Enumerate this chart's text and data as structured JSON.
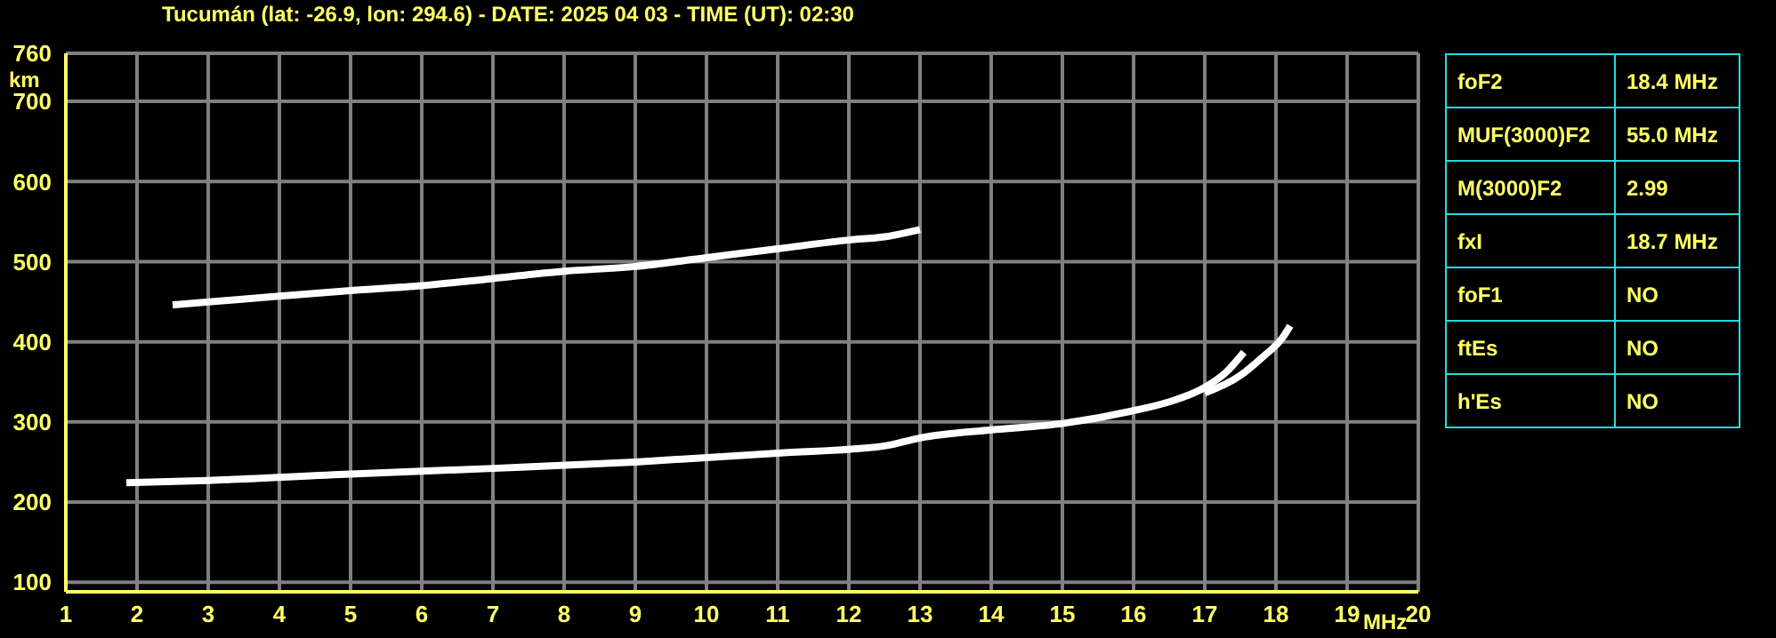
{
  "chart_data": [
    {
      "type": "line",
      "title": "Tucumán (lat: -26.9, lon: 294.6) - DATE: 2025 04 03 - TIME (UT): 02:30",
      "xlabel": "MHz",
      "ylabel": "km",
      "xlim": [
        1,
        20
      ],
      "xticks": [
        1,
        2,
        3,
        4,
        5,
        6,
        7,
        8,
        9,
        10,
        11,
        12,
        13,
        14,
        15,
        16,
        17,
        18,
        19,
        20
      ],
      "ylim": [
        88,
        760
      ],
      "yticks": [
        100,
        200,
        300,
        400,
        500,
        600,
        700,
        760
      ],
      "grid": true,
      "marker": "none",
      "line_style": "solid",
      "series": [
        {
          "color": "#ffffff",
          "x": [
            1.85,
            3,
            5,
            7,
            9,
            11,
            12.5,
            13,
            14,
            15,
            16,
            16.5,
            17,
            17.3,
            17.55
          ],
          "values": [
            224,
            227,
            235,
            242,
            250,
            261,
            270,
            280,
            290,
            298,
            314,
            325,
            343,
            362,
            387
          ]
        },
        {
          "color": "#ffffff",
          "x": [
            17,
            17.5,
            17.8,
            18.1,
            18.2
          ],
          "values": [
            336,
            358,
            380,
            406,
            420
          ]
        },
        {
          "color": "#ffffff",
          "x": [
            2.5,
            4,
            5,
            6,
            7,
            8,
            9,
            10,
            11,
            12,
            12.5,
            13
          ],
          "values": [
            446,
            457,
            464,
            470,
            479,
            488,
            494,
            505,
            516,
            527,
            531,
            540
          ]
        }
      ]
    },
    {
      "type": "other",
      "categories": [
        "foF2",
        "MUF(3000)F2",
        "M(3000)F2",
        "fxI",
        "foF1",
        "ftEs",
        "h'Es"
      ],
      "value_labels": [
        "18.4 MHz",
        "55.0 MHz",
        "2.99",
        "18.7 MHz",
        "NO",
        "NO",
        "NO"
      ]
    }
  ]
}
